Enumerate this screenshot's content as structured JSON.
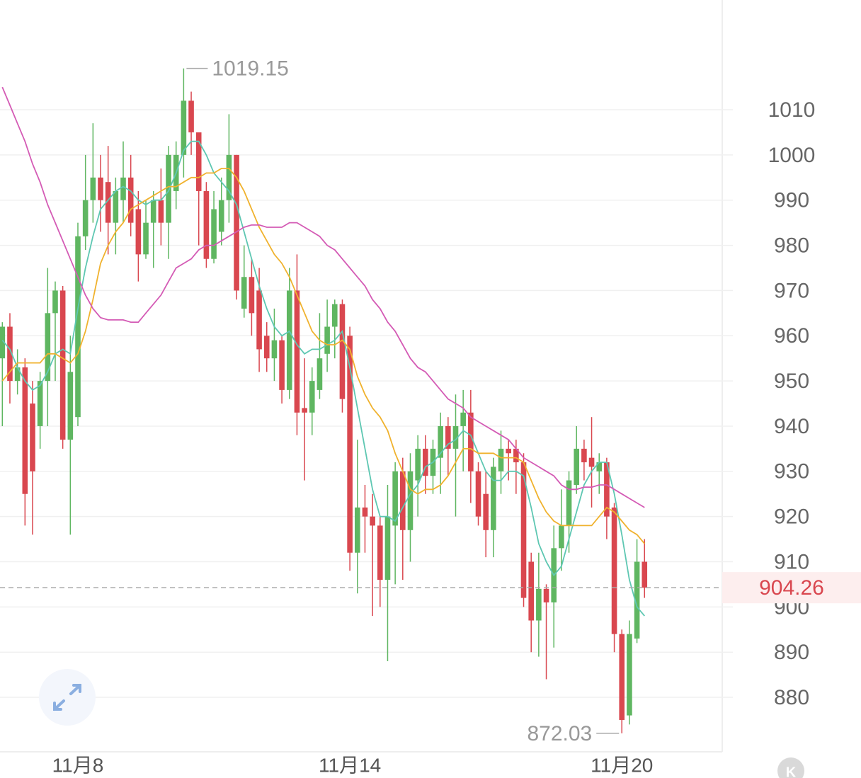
{
  "chart_data": {
    "type": "candlestick",
    "categories": [
      null,
      null,
      null,
      null,
      null,
      null,
      null,
      null,
      null,
      null,
      "11月8",
      null,
      null,
      null,
      null,
      null,
      null,
      null,
      null,
      null,
      null,
      null,
      null,
      null,
      null,
      null,
      null,
      null,
      null,
      null,
      null,
      null,
      null,
      null,
      null,
      null,
      null,
      null,
      null,
      null,
      null,
      null,
      null,
      null,
      null,
      null,
      "11月14",
      null,
      null,
      null,
      null,
      null,
      null,
      null,
      null,
      null,
      null,
      null,
      null,
      null,
      null,
      null,
      null,
      null,
      null,
      null,
      null,
      null,
      null,
      null,
      null,
      null,
      null,
      null,
      null,
      null,
      null,
      null,
      null,
      null,
      null,
      null,
      "11月20",
      null,
      null,
      null
    ],
    "open": [
      955,
      962,
      950,
      953,
      945,
      940,
      950,
      965,
      970,
      937,
      942,
      982,
      990,
      995,
      994,
      985,
      990,
      995,
      988,
      978,
      985,
      990,
      985,
      992,
      1000,
      1012,
      1005,
      992,
      977,
      983,
      990,
      1000,
      966,
      973,
      970,
      960,
      955,
      959,
      948,
      970,
      944,
      943,
      948,
      956,
      962,
      967,
      960,
      912,
      922,
      920,
      918,
      906,
      918,
      930,
      917,
      928,
      935,
      929,
      933,
      940,
      935,
      940,
      943,
      930,
      925,
      917,
      930,
      935,
      935,
      932,
      910,
      897,
      904,
      901,
      913,
      918,
      927,
      935,
      933,
      930,
      932,
      922,
      894,
      876,
      893,
      910
    ],
    "high": [
      963,
      965,
      957,
      955,
      950,
      952,
      975,
      972,
      971,
      960,
      985,
      1000,
      1007,
      1000,
      1002,
      995,
      1003,
      1000,
      992,
      990,
      992,
      997,
      1002,
      1003,
      1019.15,
      1014,
      1005,
      994,
      992,
      995,
      1009,
      1000,
      980,
      977,
      975,
      963,
      966,
      960,
      975,
      978,
      955,
      953,
      965,
      968,
      968,
      968,
      962,
      937,
      927,
      925,
      920,
      927,
      932,
      933,
      934,
      938,
      938,
      937,
      943,
      942,
      947,
      948,
      948,
      932,
      930,
      933,
      939,
      937,
      937,
      934,
      912,
      912,
      905,
      918,
      926,
      930,
      940,
      937,
      942,
      934,
      933,
      923,
      895,
      897,
      915,
      915
    ],
    "low": [
      940,
      945,
      947,
      918,
      916,
      935,
      940,
      950,
      935,
      916,
      940,
      979,
      985,
      983,
      978,
      978,
      985,
      982,
      972,
      977,
      975,
      980,
      977,
      988,
      995,
      1000,
      980,
      975,
      976,
      980,
      985,
      968,
      964,
      960,
      952,
      952,
      950,
      945,
      946,
      938,
      928,
      938,
      946,
      952,
      955,
      943,
      908,
      903,
      912,
      898,
      900,
      888,
      905,
      906,
      910,
      920,
      925,
      925,
      925,
      929,
      920,
      930,
      923,
      918,
      911,
      911,
      925,
      928,
      925,
      900,
      890,
      889,
      884,
      891,
      908,
      912,
      925,
      928,
      922,
      925,
      915,
      890,
      872.03,
      874,
      892,
      902
    ],
    "close": [
      962,
      950,
      953,
      925,
      930,
      950,
      965,
      970,
      937,
      952,
      982,
      990,
      995,
      990,
      985,
      992,
      995,
      985,
      978,
      985,
      990,
      985,
      1000,
      1000,
      1012,
      1005,
      992,
      977,
      988,
      990,
      1000,
      970,
      973,
      965,
      957,
      955,
      959,
      948,
      970,
      943,
      943,
      950,
      955,
      962,
      967,
      946,
      912,
      922,
      920,
      918,
      906,
      920,
      930,
      917,
      930,
      935,
      929,
      935,
      940,
      935,
      940,
      943,
      930,
      920,
      917,
      931,
      935,
      934,
      932,
      902,
      897,
      904,
      901,
      913,
      918,
      928,
      935,
      932,
      931,
      932,
      920,
      894,
      875,
      894,
      910,
      904.26
    ],
    "up_color": "#5fb661",
    "down_color": "#d9474f",
    "series": [
      {
        "color": "#5ec7b2",
        "values": [
          959,
          957,
          953,
          950,
          948,
          949,
          952,
          956,
          957,
          956,
          966,
          975,
          982,
          988,
          990,
          992,
          993,
          992,
          990,
          989,
          990,
          990,
          992,
          996,
          1001,
          1003,
          1003,
          1000,
          996,
          994,
          992,
          989,
          983,
          977,
          971,
          966,
          962,
          960,
          961,
          958,
          956,
          957,
          957,
          958,
          959,
          961,
          953,
          944,
          935,
          926,
          920,
          920,
          919,
          922,
          925,
          927,
          931,
          932,
          934,
          936,
          937,
          939,
          938,
          934,
          930,
          928,
          928,
          930,
          930,
          929,
          922,
          914,
          910,
          907,
          909,
          915,
          921,
          927,
          930,
          932,
          932,
          925,
          916,
          906,
          900,
          898
        ]
      },
      {
        "color": "#f0b22e",
        "values": [
          950,
          952,
          954,
          954,
          954,
          954,
          956,
          956,
          955,
          954,
          956,
          961,
          968,
          976,
          980,
          983,
          985,
          988,
          989,
          990,
          991,
          992,
          993,
          993,
          994,
          995,
          995,
          996,
          996,
          997,
          997,
          995,
          992,
          988,
          984,
          981,
          978,
          976,
          973,
          969,
          965,
          961,
          959,
          958,
          958,
          959,
          957,
          951,
          947,
          944,
          942,
          939,
          934,
          930,
          926,
          925,
          926,
          926,
          927,
          929,
          932,
          935,
          935,
          934,
          934,
          934,
          933,
          933,
          933,
          932,
          928,
          924,
          921,
          919,
          918,
          918,
          918,
          918,
          918,
          920,
          922,
          921,
          919,
          917,
          916,
          914
        ]
      },
      {
        "color": "#d45bb5",
        "values": [
          1015,
          1011,
          1007,
          1003,
          998,
          994,
          989,
          985,
          981,
          977,
          973,
          969,
          966,
          964,
          963.5,
          963.5,
          963.5,
          963,
          963,
          965,
          967,
          969,
          972,
          975,
          976,
          977,
          979,
          980,
          980,
          981,
          982,
          983,
          984,
          984.5,
          984.5,
          984,
          984,
          984,
          985,
          985,
          984,
          983,
          982,
          980,
          979,
          977,
          975,
          973,
          971,
          968,
          966,
          963,
          961,
          958,
          955,
          953,
          952,
          950,
          948,
          946,
          945,
          944,
          942,
          941,
          940,
          939,
          938,
          937,
          935,
          933,
          932,
          931,
          930,
          929,
          927,
          926,
          926,
          926.5,
          926.5,
          927,
          927,
          926,
          925,
          924,
          923,
          922
        ]
      }
    ],
    "ylim": [
      868.26,
      1034.28
    ],
    "yticks": [
      880,
      890,
      900,
      910,
      920,
      930,
      940,
      950,
      960,
      970,
      980,
      990,
      1000,
      1010
    ],
    "grid": true
  },
  "logo": "K"
}
